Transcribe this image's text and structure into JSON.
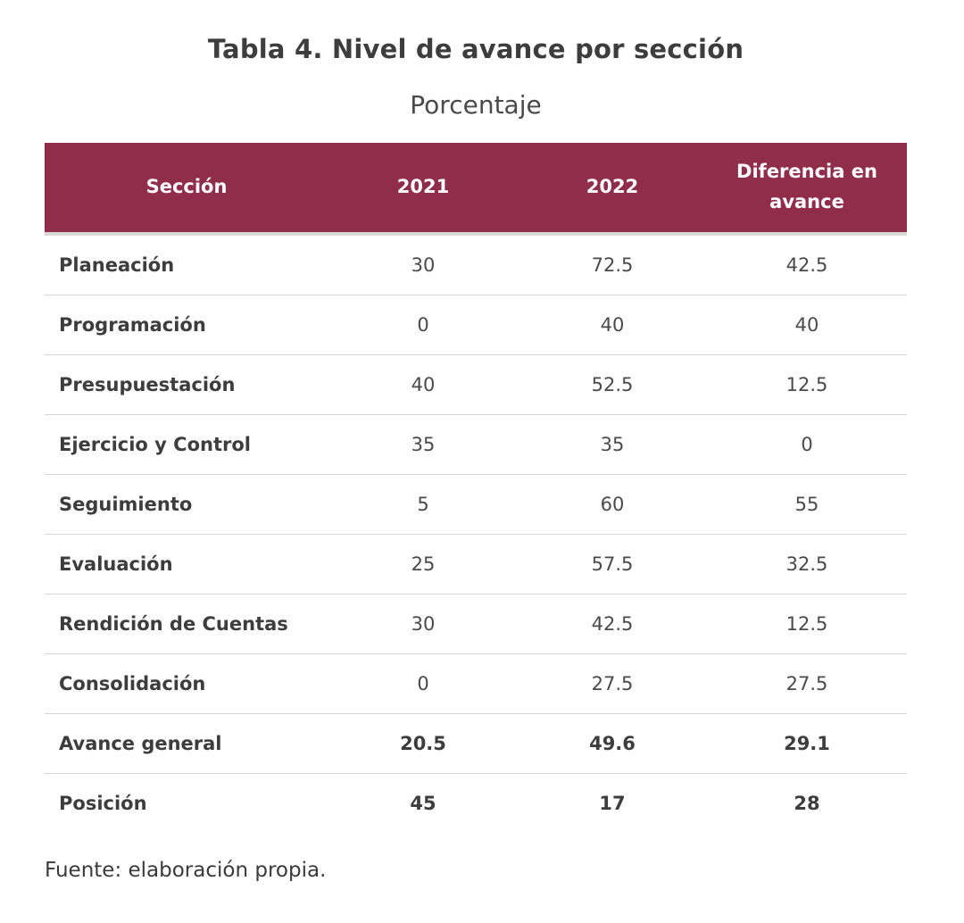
{
  "title": "Tabla 4. Nivel de avance por sección",
  "subtitle": "Porcentaje",
  "table": {
    "headers": [
      "Sección",
      "2021",
      "2022",
      "Diferencia en avance"
    ],
    "rows": [
      [
        "Planeación",
        "30",
        "72.5",
        "42.5"
      ],
      [
        "Programación",
        "0",
        "40",
        "40"
      ],
      [
        "Presupuestación",
        "40",
        "52.5",
        "12.5"
      ],
      [
        "Ejercicio y Control",
        "35",
        "35",
        "0"
      ],
      [
        "Seguimiento",
        "5",
        "60",
        "55"
      ],
      [
        "Evaluación",
        "25",
        "57.5",
        "32.5"
      ],
      [
        "Rendición de Cuentas",
        "30",
        "42.5",
        "12.5"
      ],
      [
        "Consolidación",
        "0",
        "27.5",
        "27.5"
      ],
      [
        "Avance general",
        "20.5",
        "49.6",
        "29.1"
      ],
      [
        "Posición",
        "45",
        "17",
        "28"
      ]
    ]
  },
  "source": "Fuente: elaboración propia.",
  "colors": {
    "header_bg": "#8f2d4b",
    "header_text": "#ffffff"
  }
}
